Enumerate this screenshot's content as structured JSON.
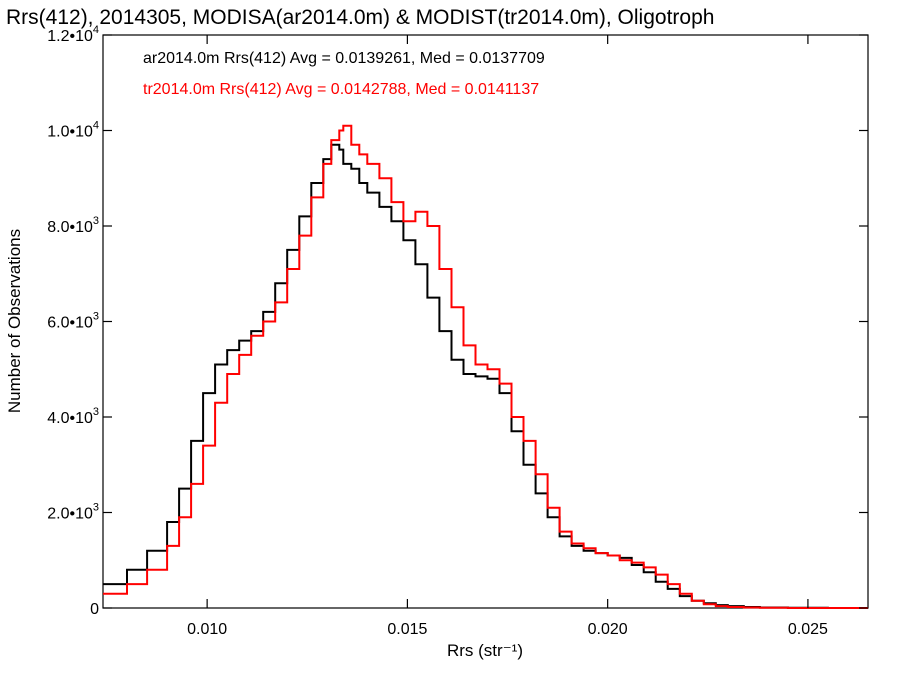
{
  "chart_data": {
    "type": "line",
    "title": "Rrs(412), 2014305, MODISA(ar2014.0m) & MODIST(tr2014.0m), Oligotroph",
    "xlabel": "Rrs (str⁻¹)",
    "ylabel": "Number of Observations",
    "xlim": [
      0.0074,
      0.0265
    ],
    "ylim": [
      0,
      12000
    ],
    "x_ticks": [
      {
        "value": 0.01,
        "label": "0.010"
      },
      {
        "value": 0.015,
        "label": "0.015"
      },
      {
        "value": 0.02,
        "label": "0.020"
      },
      {
        "value": 0.025,
        "label": "0.025"
      }
    ],
    "y_ticks": [
      {
        "value": 0,
        "label": "0",
        "sup": ""
      },
      {
        "value": 2000,
        "label": "2.0•10",
        "sup": "3"
      },
      {
        "value": 4000,
        "label": "4.0•10",
        "sup": "3"
      },
      {
        "value": 6000,
        "label": "6.0•10",
        "sup": "3"
      },
      {
        "value": 8000,
        "label": "8.0•10",
        "sup": "3"
      },
      {
        "value": 10000,
        "label": "1.0•10",
        "sup": "4"
      },
      {
        "value": 12000,
        "label": "1.2•10",
        "sup": "4"
      }
    ],
    "grid": false,
    "legend_position": "top-left",
    "series": [
      {
        "name": "ar2014.0m Rrs(412) Avg = 0.0139261, Med = 0.0137709",
        "color": "#000000",
        "style": "step",
        "x": [
          0.0074,
          0.008,
          0.0085,
          0.009,
          0.0093,
          0.0096,
          0.0099,
          0.0102,
          0.0105,
          0.0108,
          0.0111,
          0.0114,
          0.0117,
          0.012,
          0.0123,
          0.0126,
          0.0129,
          0.0131,
          0.0133,
          0.0134,
          0.0136,
          0.0138,
          0.014,
          0.0143,
          0.0146,
          0.0149,
          0.0152,
          0.0155,
          0.0158,
          0.0161,
          0.0164,
          0.0167,
          0.017,
          0.0173,
          0.0176,
          0.0179,
          0.0182,
          0.0185,
          0.0188,
          0.0191,
          0.0194,
          0.0197,
          0.02,
          0.0203,
          0.0206,
          0.0209,
          0.0212,
          0.0215,
          0.0218,
          0.0221,
          0.0224,
          0.0227,
          0.023,
          0.0234,
          0.0238,
          0.0245,
          0.0255,
          0.0265
        ],
        "values": [
          500,
          800,
          1200,
          1800,
          2500,
          3500,
          4500,
          5100,
          5400,
          5600,
          5800,
          6200,
          6800,
          7500,
          8200,
          8900,
          9400,
          9700,
          9600,
          9300,
          9200,
          8900,
          8700,
          8400,
          8100,
          7700,
          7200,
          6500,
          5800,
          5200,
          4900,
          4850,
          4800,
          4500,
          3700,
          3000,
          2400,
          1900,
          1500,
          1300,
          1200,
          1150,
          1100,
          1050,
          900,
          750,
          550,
          400,
          250,
          150,
          100,
          60,
          40,
          20,
          10,
          5,
          0,
          0
        ]
      },
      {
        "name": "tr2014.0m Rrs(412) Avg = 0.0142788, Med = 0.0141137",
        "color": "#ff0000",
        "style": "step",
        "x": [
          0.0074,
          0.008,
          0.0085,
          0.009,
          0.0093,
          0.0096,
          0.0099,
          0.0102,
          0.0105,
          0.0108,
          0.0111,
          0.0114,
          0.0117,
          0.012,
          0.0123,
          0.0126,
          0.0129,
          0.0131,
          0.0133,
          0.0134,
          0.0136,
          0.0138,
          0.014,
          0.0143,
          0.0146,
          0.0149,
          0.0152,
          0.0155,
          0.0158,
          0.0161,
          0.0164,
          0.0167,
          0.017,
          0.0173,
          0.0176,
          0.0179,
          0.0182,
          0.0185,
          0.0188,
          0.0191,
          0.0194,
          0.0197,
          0.02,
          0.0203,
          0.0206,
          0.0209,
          0.0212,
          0.0215,
          0.0218,
          0.0221,
          0.0224,
          0.0227,
          0.023,
          0.0234,
          0.0238,
          0.0245,
          0.0255,
          0.0265
        ],
        "values": [
          300,
          500,
          800,
          1300,
          1900,
          2600,
          3400,
          4300,
          4900,
          5300,
          5700,
          6000,
          6400,
          7100,
          7800,
          8600,
          9300,
          9800,
          10000,
          10100,
          9700,
          9500,
          9300,
          9000,
          8500,
          8100,
          8300,
          8000,
          7100,
          6300,
          5500,
          5100,
          5000,
          4700,
          4000,
          3500,
          2800,
          2100,
          1600,
          1350,
          1250,
          1150,
          1100,
          1000,
          950,
          850,
          700,
          500,
          300,
          150,
          80,
          40,
          20,
          10,
          5,
          0,
          0,
          0
        ]
      }
    ]
  }
}
